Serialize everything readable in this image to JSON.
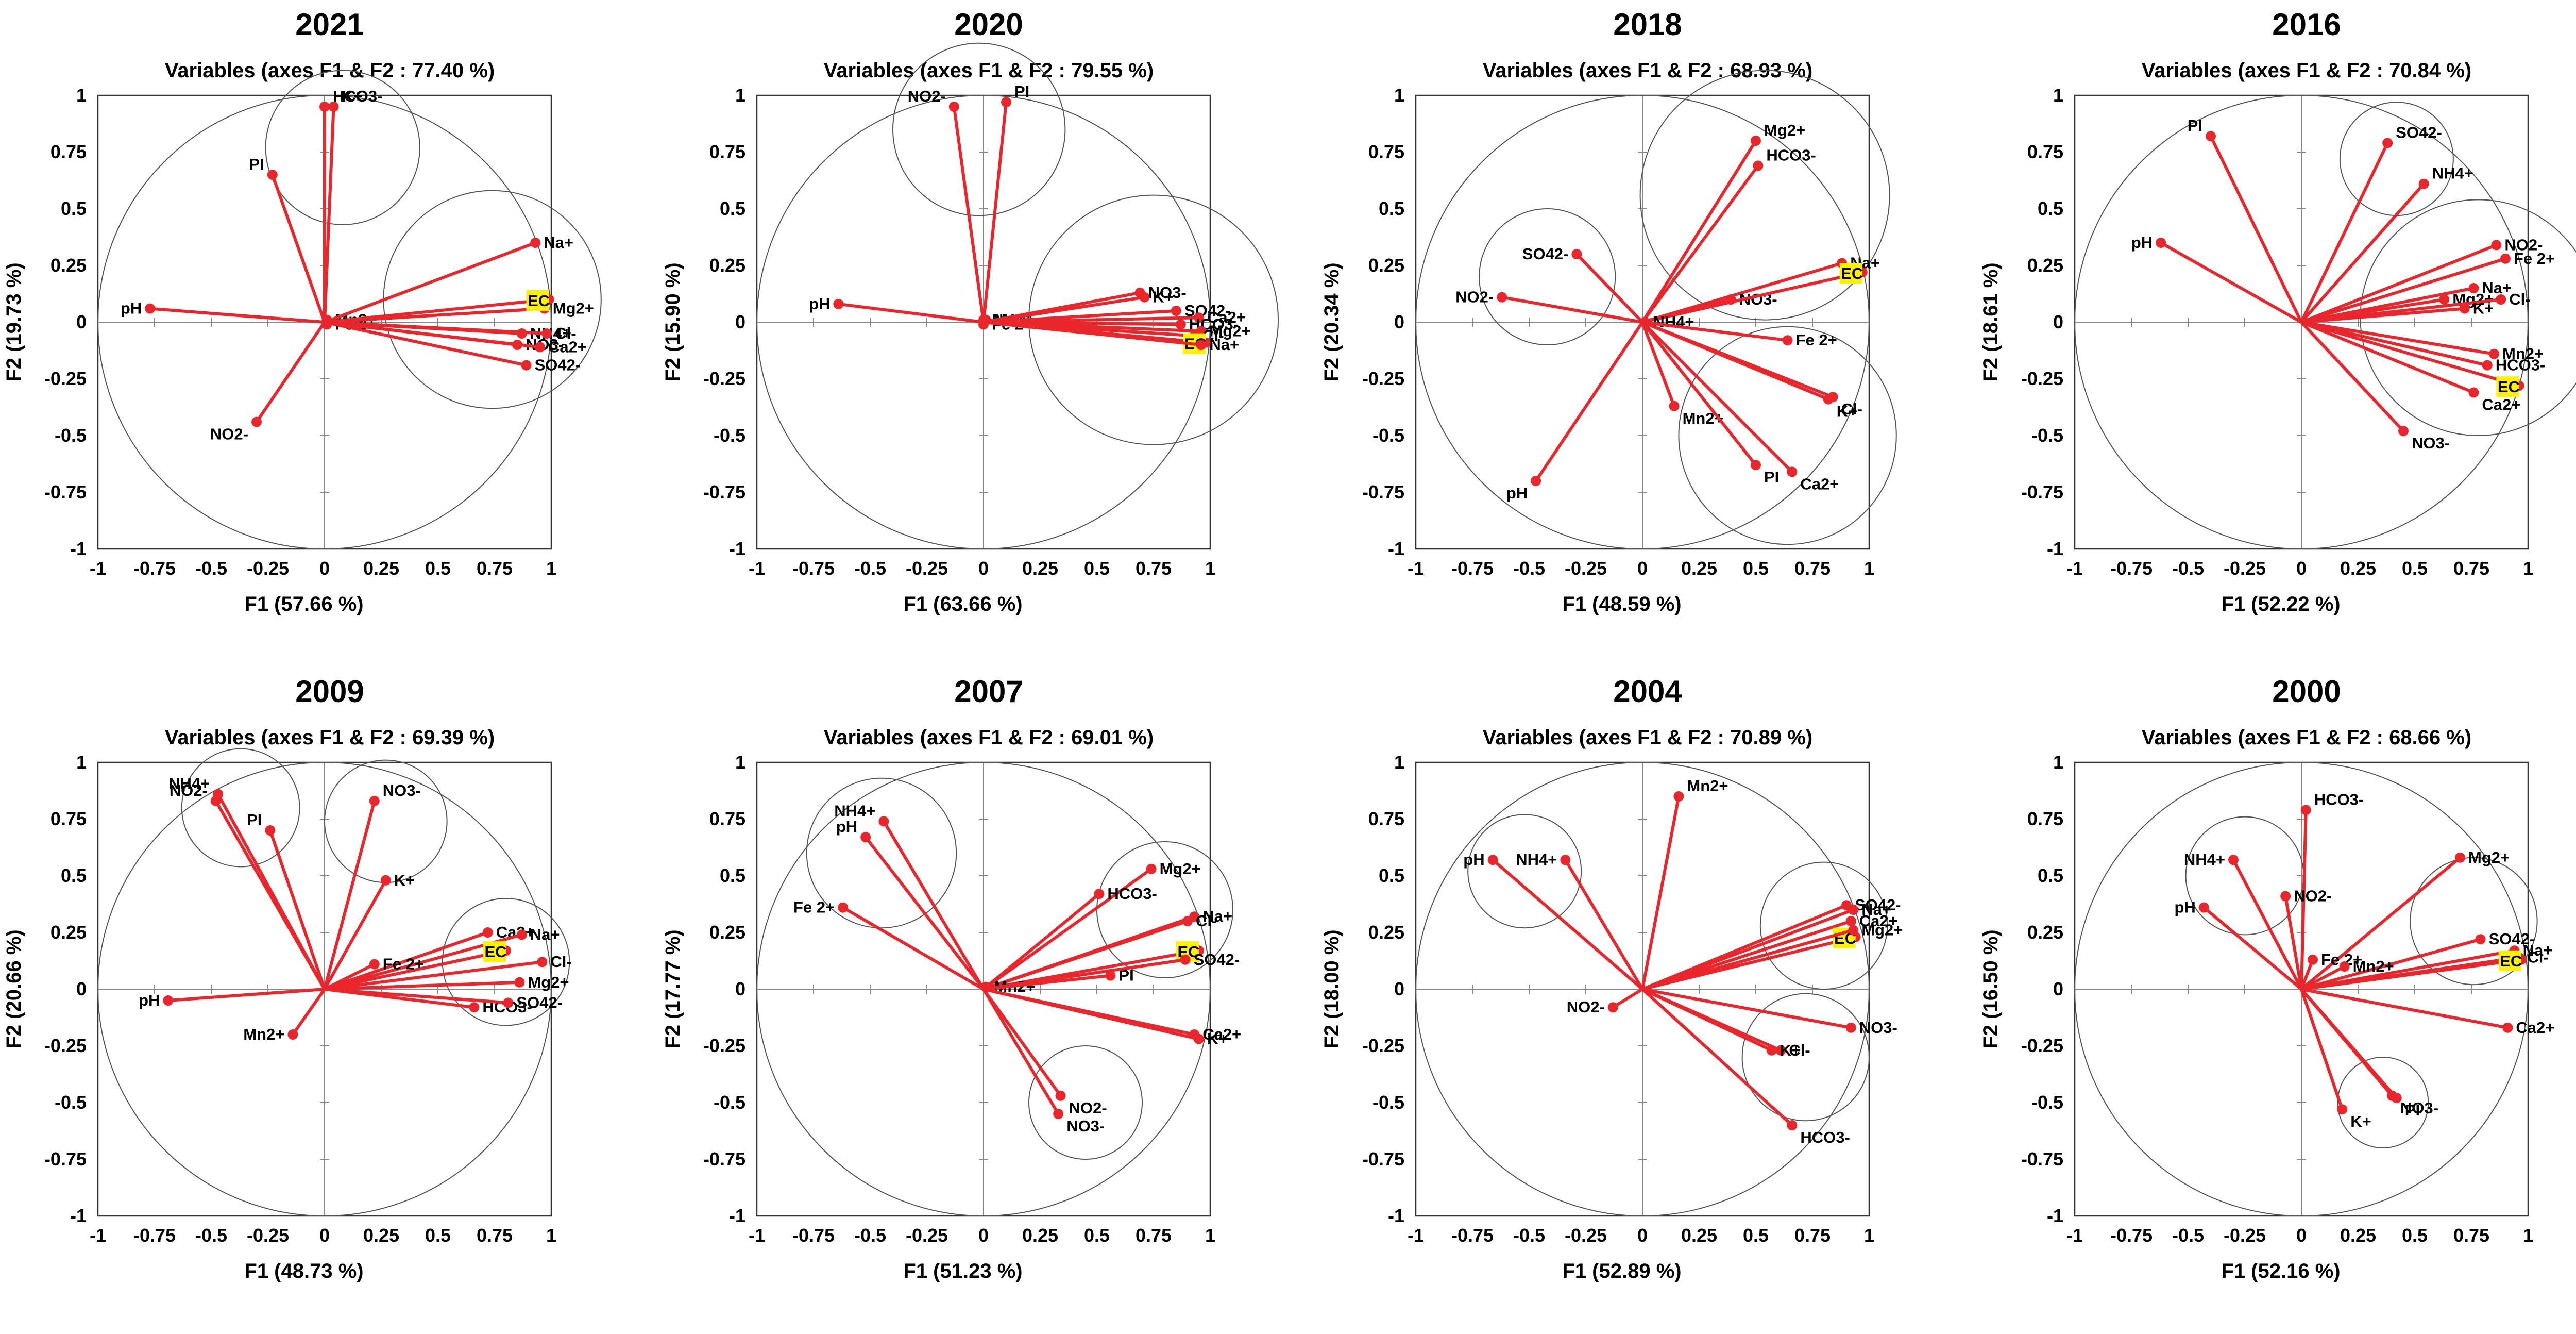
{
  "colors": {
    "vector": "#e8262b",
    "point": "#e8262b",
    "circle": "#555555",
    "frame": "#333333",
    "highlight": "#fff200"
  },
  "chart_data": [
    {
      "type": "scatter",
      "title": "2021",
      "subtitle": "Variables (axes F1 & F2 : 77.40 %)",
      "xlabel": "F1 (57.66 %)",
      "ylabel": "F2 (19.73 %)",
      "xlim": [
        -1,
        1
      ],
      "ylim": [
        -1,
        1
      ],
      "xticks": [
        "-1",
        "-0.75",
        "-0.5",
        "-0.25",
        "0",
        "0.25",
        "0.5",
        "0.75",
        "1"
      ],
      "yticks": [
        "-1",
        "-0.75",
        "-0.5",
        "-0.25",
        "0",
        "0.25",
        "0.5",
        "0.75",
        "1"
      ],
      "points": [
        {
          "label": "K+",
          "x": 0.04,
          "y": 0.95
        },
        {
          "label": "HCO3-",
          "x": 0.0,
          "y": 0.95
        },
        {
          "label": "PI",
          "x": -0.23,
          "y": 0.65
        },
        {
          "label": "pH",
          "x": -0.77,
          "y": 0.06
        },
        {
          "label": "Mn2+",
          "x": 0.01,
          "y": 0.01
        },
        {
          "label": "Fe 2+",
          "x": 0.01,
          "y": -0.01
        },
        {
          "label": "NO2-",
          "x": -0.3,
          "y": -0.44
        },
        {
          "label": "Na+",
          "x": 0.93,
          "y": 0.35
        },
        {
          "label": "Mg2+",
          "x": 0.97,
          "y": 0.06
        },
        {
          "label": "EC",
          "x": 0.99,
          "y": 0.1,
          "highlight": true
        },
        {
          "label": "NH4+",
          "x": 0.87,
          "y": -0.05
        },
        {
          "label": "Cl-",
          "x": 0.98,
          "y": -0.05
        },
        {
          "label": "NO3-",
          "x": 0.85,
          "y": -0.1
        },
        {
          "label": "Ca2+",
          "x": 0.95,
          "y": -0.11
        },
        {
          "label": "SO42-",
          "x": 0.89,
          "y": -0.19
        }
      ],
      "circles": [
        {
          "cx": 0.08,
          "cy": 0.77,
          "r": 0.34
        },
        {
          "cx": 0.74,
          "cy": 0.1,
          "r": 0.48
        }
      ]
    },
    {
      "type": "scatter",
      "title": "2020",
      "subtitle": "Variables (axes F1 & F2 : 79.55 %)",
      "xlabel": "F1 (63.66 %)",
      "ylabel": "F2 (15.90 %)",
      "xlim": [
        -1,
        1
      ],
      "ylim": [
        -1,
        1
      ],
      "xticks": [
        "-1",
        "-0.75",
        "-0.5",
        "-0.25",
        "0",
        "0.25",
        "0.5",
        "0.75",
        "1"
      ],
      "yticks": [
        "-1",
        "-0.75",
        "-0.5",
        "-0.25",
        "0",
        "0.25",
        "0.5",
        "0.75",
        "1"
      ],
      "points": [
        {
          "label": "NO2-",
          "x": -0.13,
          "y": 0.95
        },
        {
          "label": "PI",
          "x": 0.1,
          "y": 0.97
        },
        {
          "label": "pH",
          "x": -0.64,
          "y": 0.08
        },
        {
          "label": "NH4+",
          "x": 0.0,
          "y": 0.01
        },
        {
          "label": "Mn2+",
          "x": 0.01,
          "y": 0.01
        },
        {
          "label": "Fe 2+",
          "x": 0.0,
          "y": -0.01
        },
        {
          "label": "NO3-",
          "x": 0.69,
          "y": 0.13
        },
        {
          "label": "K+",
          "x": 0.71,
          "y": 0.11
        },
        {
          "label": "SO42-",
          "x": 0.85,
          "y": 0.05
        },
        {
          "label": "Ca2+",
          "x": 0.95,
          "y": 0.02
        },
        {
          "label": "HCO3-",
          "x": 0.87,
          "y": -0.01
        },
        {
          "label": "Mg2+",
          "x": 0.96,
          "y": -0.04
        },
        {
          "label": "Cl-",
          "x": 0.93,
          "y": -0.06
        },
        {
          "label": "EC",
          "x": 0.98,
          "y": -0.09,
          "highlight": true
        },
        {
          "label": "Na+",
          "x": 0.96,
          "y": -0.1
        }
      ],
      "circles": [
        {
          "cx": -0.02,
          "cy": 0.85,
          "r": 0.38
        },
        {
          "cx": 0.75,
          "cy": 0.01,
          "r": 0.55
        }
      ]
    },
    {
      "type": "scatter",
      "title": "2018",
      "subtitle": "Variables (axes F1 & F2 : 68.93 %)",
      "xlabel": "F1 (48.59 %)",
      "ylabel": "F2 (20.34 %)",
      "xlim": [
        -1,
        1
      ],
      "ylim": [
        -1,
        1
      ],
      "xticks": [
        "-1",
        "-0.75",
        "-0.5",
        "-0.25",
        "0",
        "0.25",
        "0.5",
        "0.75",
        "1"
      ],
      "yticks": [
        "-1",
        "-0.75",
        "-0.5",
        "-0.25",
        "0",
        "0.25",
        "0.5",
        "0.75",
        "1"
      ],
      "points": [
        {
          "label": "Mg2+",
          "x": 0.5,
          "y": 0.8
        },
        {
          "label": "HCO3-",
          "x": 0.51,
          "y": 0.69
        },
        {
          "label": "SO42-",
          "x": -0.29,
          "y": 0.3
        },
        {
          "label": "NO2-",
          "x": -0.62,
          "y": 0.11
        },
        {
          "label": "Na+",
          "x": 0.88,
          "y": 0.26
        },
        {
          "label": "NO3-",
          "x": 0.39,
          "y": 0.1
        },
        {
          "label": "EC",
          "x": 0.97,
          "y": 0.22,
          "highlight": true
        },
        {
          "label": "NH4+",
          "x": 0.01,
          "y": 0.0
        },
        {
          "label": "Fe 2+",
          "x": 0.64,
          "y": -0.08
        },
        {
          "label": "Cl-",
          "x": 0.84,
          "y": -0.33
        },
        {
          "label": "K+",
          "x": 0.82,
          "y": -0.34
        },
        {
          "label": "Mn2+",
          "x": 0.14,
          "y": -0.37
        },
        {
          "label": "Ca2+",
          "x": 0.66,
          "y": -0.66
        },
        {
          "label": "PI",
          "x": 0.5,
          "y": -0.63
        },
        {
          "label": "pH",
          "x": -0.47,
          "y": -0.7
        }
      ],
      "circles": [
        {
          "cx": 0.54,
          "cy": 0.56,
          "r": 0.55
        },
        {
          "cx": -0.42,
          "cy": 0.2,
          "r": 0.3
        },
        {
          "cx": 0.64,
          "cy": -0.5,
          "r": 0.48
        }
      ]
    },
    {
      "type": "scatter",
      "title": "2016",
      "subtitle": "Variables (axes F1 & F2 : 70.84 %)",
      "xlabel": "F1 (52.22 %)",
      "ylabel": "F2 (18.61 %)",
      "xlim": [
        -1,
        1
      ],
      "ylim": [
        -1,
        1
      ],
      "xticks": [
        "-1",
        "-0.75",
        "-0.5",
        "-0.25",
        "0",
        "0.25",
        "0.5",
        "0.75",
        "1"
      ],
      "yticks": [
        "-1",
        "-0.75",
        "-0.5",
        "-0.25",
        "0",
        "0.25",
        "0.5",
        "0.75",
        "1"
      ],
      "points": [
        {
          "label": "PI",
          "x": -0.4,
          "y": 0.82
        },
        {
          "label": "SO42-",
          "x": 0.38,
          "y": 0.79
        },
        {
          "label": "NH4+",
          "x": 0.54,
          "y": 0.61
        },
        {
          "label": "pH",
          "x": -0.62,
          "y": 0.35
        },
        {
          "label": "NO2-",
          "x": 0.86,
          "y": 0.34
        },
        {
          "label": "Fe 2+",
          "x": 0.9,
          "y": 0.28
        },
        {
          "label": "Na+",
          "x": 0.76,
          "y": 0.15
        },
        {
          "label": "Mg2+",
          "x": 0.63,
          "y": 0.1
        },
        {
          "label": "Cl-",
          "x": 0.88,
          "y": 0.1
        },
        {
          "label": "K+",
          "x": 0.72,
          "y": 0.06
        },
        {
          "label": "Mn2+",
          "x": 0.85,
          "y": -0.14
        },
        {
          "label": "HCO3-",
          "x": 0.82,
          "y": -0.19
        },
        {
          "label": "EC",
          "x": 0.96,
          "y": -0.28,
          "highlight": true
        },
        {
          "label": "Ca2+",
          "x": 0.76,
          "y": -0.31
        },
        {
          "label": "NO3-",
          "x": 0.45,
          "y": -0.48
        }
      ],
      "circles": [
        {
          "cx": 0.42,
          "cy": 0.72,
          "r": 0.25
        },
        {
          "cx": 0.78,
          "cy": 0.02,
          "r": 0.52
        }
      ]
    },
    {
      "type": "scatter",
      "title": "2009",
      "subtitle": "Variables (axes F1 & F2 : 69.39 %)",
      "xlabel": "F1 (48.73 %)",
      "ylabel": "F2 (20.66 %)",
      "xlim": [
        -1,
        1
      ],
      "ylim": [
        -1,
        1
      ],
      "xticks": [
        "-1",
        "-0.75",
        "-0.5",
        "-0.25",
        "0",
        "0.25",
        "0.5",
        "0.75",
        "1"
      ],
      "yticks": [
        "-1",
        "-0.75",
        "-0.5",
        "-0.25",
        "0",
        "0.25",
        "0.5",
        "0.75",
        "1"
      ],
      "points": [
        {
          "label": "NH4+",
          "x": -0.47,
          "y": 0.86
        },
        {
          "label": "NO2-",
          "x": -0.48,
          "y": 0.83
        },
        {
          "label": "PI",
          "x": -0.24,
          "y": 0.7
        },
        {
          "label": "NO3-",
          "x": 0.22,
          "y": 0.83
        },
        {
          "label": "K+",
          "x": 0.27,
          "y": 0.48
        },
        {
          "label": "Ca2+",
          "x": 0.72,
          "y": 0.25
        },
        {
          "label": "Na+",
          "x": 0.87,
          "y": 0.24
        },
        {
          "label": "Cl-",
          "x": 0.96,
          "y": 0.12
        },
        {
          "label": "EC",
          "x": 0.8,
          "y": 0.17,
          "highlight": true
        },
        {
          "label": "Fe 2+",
          "x": 0.22,
          "y": 0.11
        },
        {
          "label": "Mg2+",
          "x": 0.86,
          "y": 0.03
        },
        {
          "label": "HCO3-",
          "x": 0.66,
          "y": -0.08
        },
        {
          "label": "SO42-",
          "x": 0.81,
          "y": -0.06
        },
        {
          "label": "pH",
          "x": -0.69,
          "y": -0.05
        },
        {
          "label": "Mn2+",
          "x": -0.14,
          "y": -0.2
        }
      ],
      "circles": [
        {
          "cx": -0.37,
          "cy": 0.8,
          "r": 0.26
        },
        {
          "cx": 0.27,
          "cy": 0.74,
          "r": 0.27
        },
        {
          "cx": 0.8,
          "cy": 0.12,
          "r": 0.28
        }
      ]
    },
    {
      "type": "scatter",
      "title": "2007",
      "subtitle": "Variables (axes F1 & F2 : 69.01 %)",
      "xlabel": "F1 (51.23 %)",
      "ylabel": "F2 (17.77 %)",
      "xlim": [
        -1,
        1
      ],
      "ylim": [
        -1,
        1
      ],
      "xticks": [
        "-1",
        "-0.75",
        "-0.5",
        "-0.25",
        "0",
        "0.25",
        "0.5",
        "0.75",
        "1"
      ],
      "yticks": [
        "-1",
        "-0.75",
        "-0.5",
        "-0.25",
        "0",
        "0.25",
        "0.5",
        "0.75",
        "1"
      ],
      "points": [
        {
          "label": "NH4+",
          "x": -0.44,
          "y": 0.74
        },
        {
          "label": "pH",
          "x": -0.52,
          "y": 0.67
        },
        {
          "label": "Fe 2+",
          "x": -0.62,
          "y": 0.36
        },
        {
          "label": "Mg2+",
          "x": 0.74,
          "y": 0.53
        },
        {
          "label": "HCO3-",
          "x": 0.51,
          "y": 0.42
        },
        {
          "label": "Na+",
          "x": 0.93,
          "y": 0.32
        },
        {
          "label": "Cl-",
          "x": 0.9,
          "y": 0.3
        },
        {
          "label": "EC",
          "x": 0.95,
          "y": 0.17,
          "highlight": true
        },
        {
          "label": "Mn2+",
          "x": 0.01,
          "y": 0.01
        },
        {
          "label": "PI",
          "x": 0.56,
          "y": 0.06
        },
        {
          "label": "SO42-",
          "x": 0.89,
          "y": 0.13
        },
        {
          "label": "K+",
          "x": 0.95,
          "y": -0.22
        },
        {
          "label": "Ca2+",
          "x": 0.93,
          "y": -0.2
        },
        {
          "label": "NO2-",
          "x": 0.34,
          "y": -0.47
        },
        {
          "label": "NO3-",
          "x": 0.33,
          "y": -0.55
        }
      ],
      "circles": [
        {
          "cx": -0.45,
          "cy": 0.6,
          "r": 0.33
        },
        {
          "cx": 0.8,
          "cy": 0.35,
          "r": 0.3
        },
        {
          "cx": 0.45,
          "cy": -0.5,
          "r": 0.25
        }
      ]
    },
    {
      "type": "scatter",
      "title": "2004",
      "subtitle": "Variables (axes F1 & F2 : 70.89 %)",
      "xlabel": "F1 (52.89 %)",
      "ylabel": "F2 (18.00 %)",
      "xlim": [
        -1,
        1
      ],
      "ylim": [
        -1,
        1
      ],
      "xticks": [
        "-1",
        "-0.75",
        "-0.5",
        "-0.25",
        "0",
        "0.25",
        "0.5",
        "0.75",
        "1"
      ],
      "yticks": [
        "-1",
        "-0.75",
        "-0.5",
        "-0.25",
        "0",
        "0.25",
        "0.5",
        "0.75",
        "1"
      ],
      "points": [
        {
          "label": "Mn2+",
          "x": 0.16,
          "y": 0.85
        },
        {
          "label": "pH",
          "x": -0.66,
          "y": 0.57
        },
        {
          "label": "NH4+",
          "x": -0.34,
          "y": 0.57
        },
        {
          "label": "SO42-",
          "x": 0.9,
          "y": 0.37
        },
        {
          "label": "Na+",
          "x": 0.93,
          "y": 0.35
        },
        {
          "label": "Ca2+",
          "x": 0.92,
          "y": 0.3
        },
        {
          "label": "EC",
          "x": 0.94,
          "y": 0.23,
          "highlight": true
        },
        {
          "label": "Mg2+",
          "x": 0.93,
          "y": 0.26
        },
        {
          "label": "NO2-",
          "x": -0.13,
          "y": -0.08
        },
        {
          "label": "NO3-",
          "x": 0.92,
          "y": -0.17
        },
        {
          "label": "Cl-",
          "x": 0.61,
          "y": -0.27
        },
        {
          "label": "K+",
          "x": 0.57,
          "y": -0.27
        },
        {
          "label": "HCO3-",
          "x": 0.66,
          "y": -0.6
        }
      ],
      "circles": [
        {
          "cx": -0.52,
          "cy": 0.52,
          "r": 0.25
        },
        {
          "cx": 0.8,
          "cy": 0.28,
          "r": 0.28
        },
        {
          "cx": 0.72,
          "cy": -0.3,
          "r": 0.28
        }
      ]
    },
    {
      "type": "scatter",
      "title": "2000",
      "subtitle": "Variables (axes F1 & F2 : 68.66 %)",
      "xlabel": "F1 (52.16 %)",
      "ylabel": "F2 (16.50 %)",
      "xlim": [
        -1,
        1
      ],
      "ylim": [
        -1,
        1
      ],
      "xticks": [
        "-1",
        "-0.75",
        "-0.5",
        "-0.25",
        "0",
        "0.25",
        "0.5",
        "0.75",
        "1"
      ],
      "yticks": [
        "-1",
        "-0.75",
        "-0.5",
        "-0.25",
        "0",
        "0.25",
        "0.5",
        "0.75",
        "1"
      ],
      "points": [
        {
          "label": "HCO3-",
          "x": 0.02,
          "y": 0.79
        },
        {
          "label": "Mg2+",
          "x": 0.7,
          "y": 0.58
        },
        {
          "label": "NH4+",
          "x": -0.3,
          "y": 0.57
        },
        {
          "label": "NO2-",
          "x": -0.07,
          "y": 0.41
        },
        {
          "label": "pH",
          "x": -0.43,
          "y": 0.36
        },
        {
          "label": "SO42-",
          "x": 0.79,
          "y": 0.22
        },
        {
          "label": "Na+",
          "x": 0.94,
          "y": 0.17
        },
        {
          "label": "Fe 2+",
          "x": 0.05,
          "y": 0.13
        },
        {
          "label": "Mn2+",
          "x": 0.19,
          "y": 0.1
        },
        {
          "label": "Cl-",
          "x": 0.96,
          "y": 0.14
        },
        {
          "label": "EC",
          "x": 0.97,
          "y": 0.13,
          "highlight": true
        },
        {
          "label": "Ca2+",
          "x": 0.91,
          "y": -0.17
        },
        {
          "label": "NO3-",
          "x": 0.4,
          "y": -0.47
        },
        {
          "label": "PI",
          "x": 0.42,
          "y": -0.48
        },
        {
          "label": "K+",
          "x": 0.18,
          "y": -0.53
        }
      ],
      "circles": [
        {
          "cx": -0.25,
          "cy": 0.5,
          "r": 0.26
        },
        {
          "cx": 0.76,
          "cy": 0.3,
          "r": 0.28
        },
        {
          "cx": 0.36,
          "cy": -0.5,
          "r": 0.2
        }
      ]
    }
  ]
}
